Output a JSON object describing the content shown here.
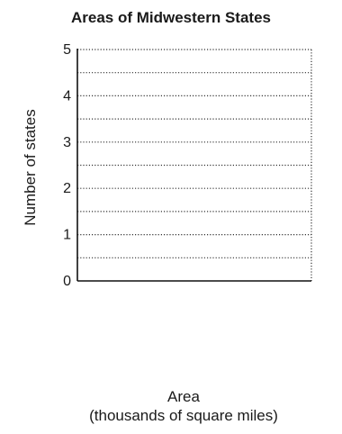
{
  "chart_data": {
    "type": "bar",
    "title": "Areas of Midwestern States",
    "xlabel_line1": "Area",
    "xlabel_line2": "(thousands of square miles)",
    "ylabel": "Number of states",
    "ylim": [
      0,
      5
    ],
    "yticks": [
      0,
      1,
      2,
      3,
      4,
      5
    ],
    "minor_step": 0.5,
    "categories": [],
    "values": [],
    "grid": "dotted horizontal"
  }
}
